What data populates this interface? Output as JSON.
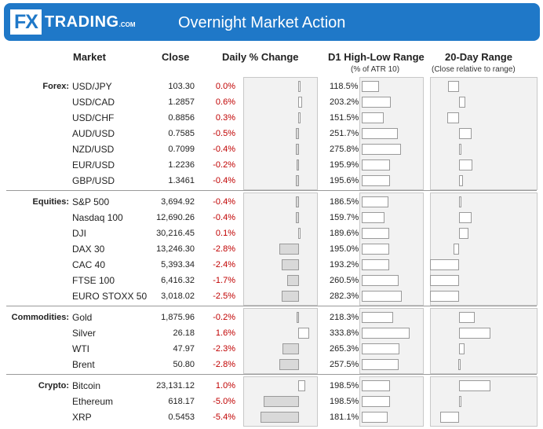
{
  "header": {
    "logo_fx": "FX",
    "logo_trading": "TRADING",
    "logo_com": ".COM",
    "title": "Overnight Market Action"
  },
  "columns": {
    "market": "Market",
    "close": "Close",
    "daily": "Daily % Change",
    "d1": "D1 High-Low Range",
    "d1_sub": "(% of ATR 10)",
    "r20": "20-Day Range",
    "r20_sub": "(Close relative to range)"
  },
  "colors": {
    "header": "#1f78c8",
    "negative_text": "#c00000",
    "panel": "#f2f2f2"
  },
  "chart_data": {
    "type": "table",
    "groups": [
      {
        "label": "Forex:",
        "rows": [
          {
            "market": "USD/JPY",
            "close": "103.30",
            "change": "0.0%",
            "change_value": 0.0,
            "range_label": "118.5%",
            "range_value": 118.5,
            "pos20": 0.16
          },
          {
            "market": "USD/CAD",
            "close": "1.2857",
            "change": "0.6%",
            "change_value": 0.6,
            "range_label": "203.2%",
            "range_value": 203.2,
            "pos20": 0.71
          },
          {
            "market": "USD/CHF",
            "close": "0.8856",
            "change": "0.3%",
            "change_value": 0.3,
            "range_label": "151.5%",
            "range_value": 151.5,
            "pos20": 0.13
          },
          {
            "market": "AUD/USD",
            "close": "0.7585",
            "change": "-0.5%",
            "change_value": -0.5,
            "range_label": "251.7%",
            "range_value": 251.7,
            "pos20": 0.89
          },
          {
            "market": "NZD/USD",
            "close": "0.7099",
            "change": "-0.4%",
            "change_value": -0.4,
            "range_label": "275.8%",
            "range_value": 275.8,
            "pos20": 0.52
          },
          {
            "market": "EUR/USD",
            "close": "1.2236",
            "change": "-0.2%",
            "change_value": -0.2,
            "range_label": "195.9%",
            "range_value": 195.9,
            "pos20": 0.92
          },
          {
            "market": "GBP/USD",
            "close": "1.3461",
            "change": "-0.4%",
            "change_value": -0.4,
            "range_label": "195.6%",
            "range_value": 195.6,
            "pos20": 0.62
          }
        ]
      },
      {
        "label": "Equities:",
        "rows": [
          {
            "market": "S&P 500",
            "close": "3,694.92",
            "change": "-0.4%",
            "change_value": -0.4,
            "range_label": "186.5%",
            "range_value": 186.5,
            "pos20": 0.54
          },
          {
            "market": "Nasdaq 100",
            "close": "12,690.26",
            "change": "-0.4%",
            "change_value": -0.4,
            "range_label": "159.7%",
            "range_value": 159.7,
            "pos20": 0.89
          },
          {
            "market": "DJI",
            "close": "30,216.45",
            "change": "0.1%",
            "change_value": 0.1,
            "range_label": "189.6%",
            "range_value": 189.6,
            "pos20": 0.81
          },
          {
            "market": "DAX 30",
            "close": "13,246.30",
            "change": "-2.8%",
            "change_value": -2.8,
            "range_label": "195.0%",
            "range_value": 195.0,
            "pos20": 0.33
          },
          {
            "market": "CAC 40",
            "close": "5,393.34",
            "change": "-2.4%",
            "change_value": -2.4,
            "range_label": "193.2%",
            "range_value": 193.2,
            "pos20": -1.1
          },
          {
            "market": "FTSE 100",
            "close": "6,416.32",
            "change": "-1.7%",
            "change_value": -1.7,
            "range_label": "260.5%",
            "range_value": 260.5,
            "pos20": -1.1
          },
          {
            "market": "EURO STOXX 50",
            "close": "3,018.02",
            "change": "-2.5%",
            "change_value": -2.5,
            "range_label": "282.3%",
            "range_value": 282.3,
            "pos20": -1.1
          }
        ]
      },
      {
        "label": "Commodities:",
        "rows": [
          {
            "market": "Gold",
            "close": "1,875.96",
            "change": "-0.2%",
            "change_value": -0.2,
            "range_label": "218.3%",
            "range_value": 218.3,
            "pos20": 1.0
          },
          {
            "market": "Silver",
            "close": "26.18",
            "change": "1.6%",
            "change_value": 1.6,
            "range_label": "333.8%",
            "range_value": 333.8,
            "pos20": 1.5
          },
          {
            "market": "WTI",
            "close": "47.97",
            "change": "-2.3%",
            "change_value": -2.3,
            "range_label": "265.3%",
            "range_value": 265.3,
            "pos20": 0.67
          },
          {
            "market": "Brent",
            "close": "50.80",
            "change": "-2.8%",
            "change_value": -2.8,
            "range_label": "257.5%",
            "range_value": 257.5,
            "pos20": 0.48
          }
        ]
      },
      {
        "label": "Crypto:",
        "rows": [
          {
            "market": "Bitcoin",
            "close": "23,131.12",
            "change": "1.0%",
            "change_value": 1.0,
            "range_label": "198.5%",
            "range_value": 198.5,
            "pos20": 1.5
          },
          {
            "market": "Ethereum",
            "close": "618.17",
            "change": "-5.0%",
            "change_value": -5.0,
            "range_label": "198.5%",
            "range_value": 198.5,
            "pos20": 0.55
          },
          {
            "market": "XRP",
            "close": "0.5453",
            "change": "-5.4%",
            "change_value": -5.4,
            "range_label": "181.1%",
            "range_value": 181.1,
            "pos20": -0.1
          }
        ]
      }
    ]
  }
}
